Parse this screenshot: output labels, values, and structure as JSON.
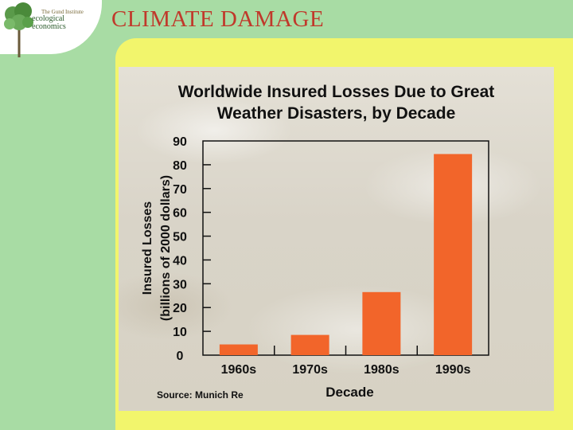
{
  "slide": {
    "title": "CLIMATE DAMAGE",
    "logo": {
      "small": "The Gund Institute",
      "line1": "ecological",
      "line2": "economics"
    },
    "colors": {
      "frame": "#a8dca4",
      "panel": "#f2f56c",
      "title": "#c0392b",
      "bar": "#f2652a"
    }
  },
  "chart_data": {
    "type": "bar",
    "title_lines": [
      "Worldwide Insured Losses Due to Great",
      "Weather Disasters, by Decade"
    ],
    "categories": [
      "1960s",
      "1970s",
      "1980s",
      "1990s"
    ],
    "values": [
      4.5,
      8.5,
      26.5,
      84.5
    ],
    "xlabel": "Decade",
    "ylabel_lines": [
      "Insured Losses",
      "(billions of 2000 dollars)"
    ],
    "ylim": [
      0,
      90
    ],
    "yticks": [
      0,
      10,
      20,
      30,
      40,
      50,
      60,
      70,
      80,
      90
    ],
    "source": "Source: Munich Re",
    "grid": false
  }
}
